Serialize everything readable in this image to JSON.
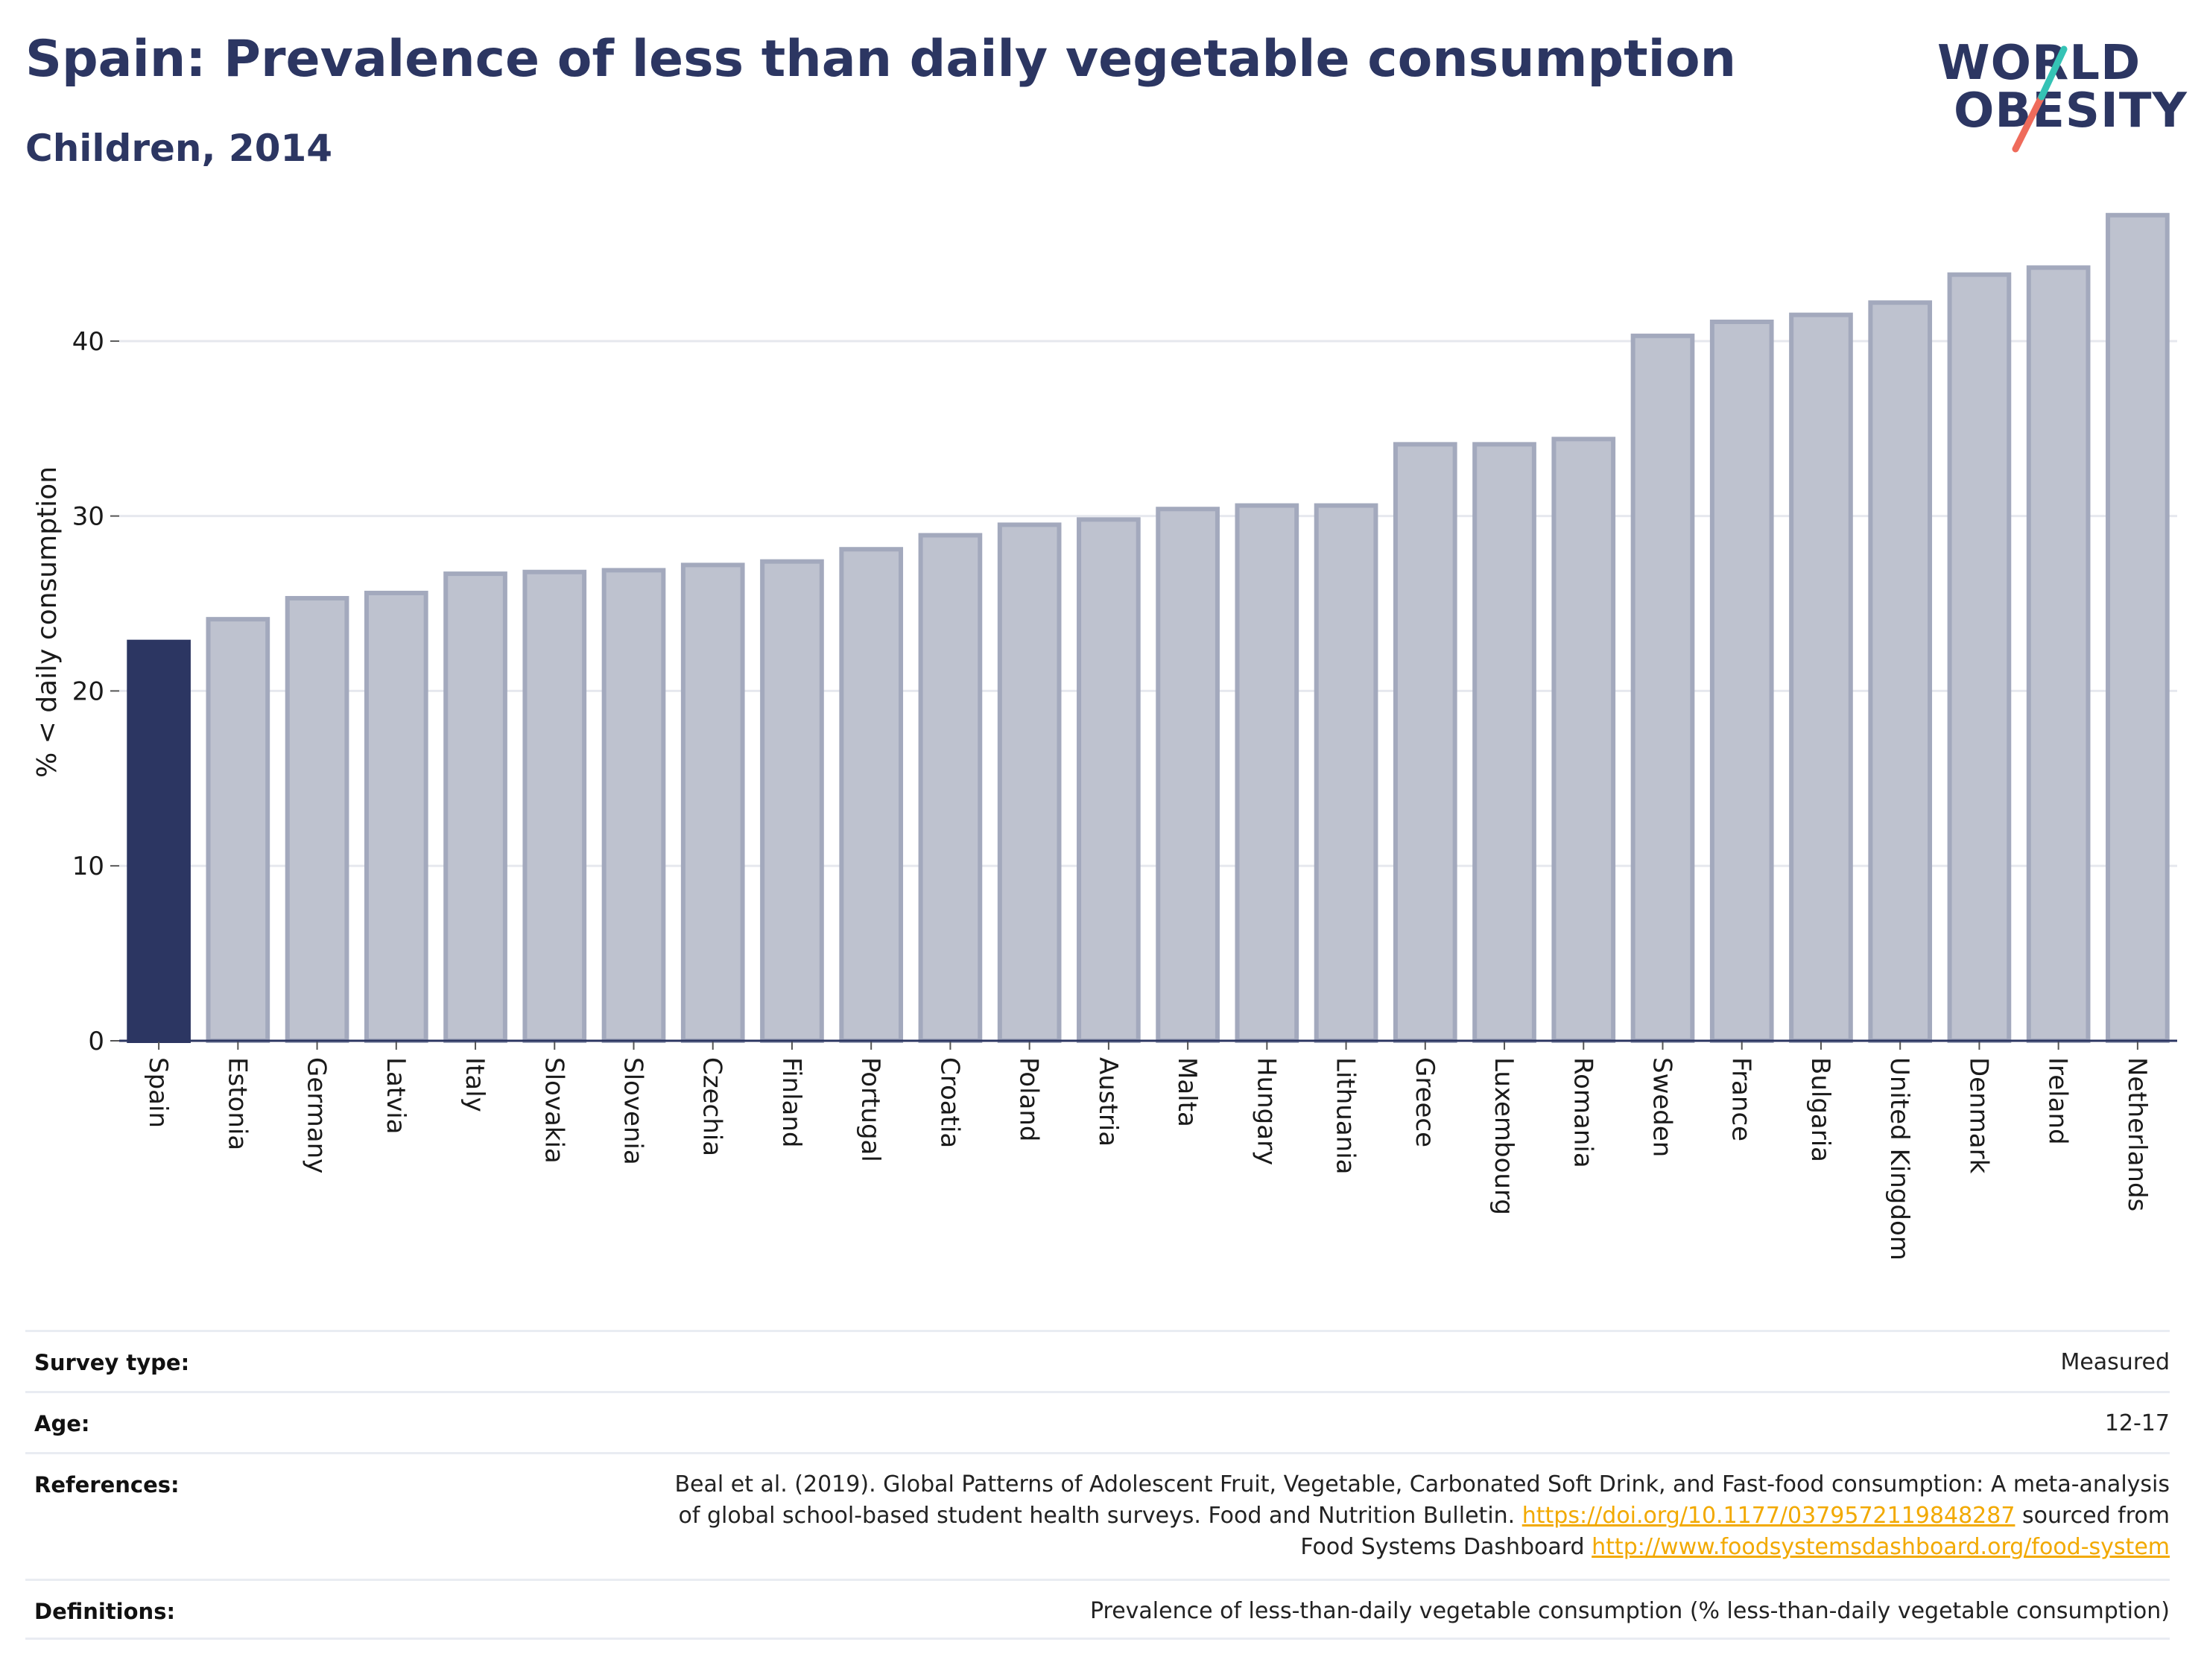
{
  "header": {
    "title": "Spain: Prevalence of less than daily vegetable consumption",
    "subtitle": "Children, 2014"
  },
  "logo": {
    "line1": "WORLD",
    "line2": "OBESITY"
  },
  "colors": {
    "highlight": "#2c3662",
    "bar_fill": "#bec2cf",
    "bar_stroke": "#a3a9bd",
    "grid": "#e6e8ee",
    "logo_teal": "#35c3b5",
    "logo_coral": "#ef6b5b"
  },
  "chart_data": {
    "type": "bar",
    "title": "Spain: Prevalence of less than daily vegetable consumption",
    "subtitle": "Children, 2014",
    "xlabel": "",
    "ylabel": "% < daily consumption",
    "ylim": [
      0,
      48
    ],
    "yticks": [
      0,
      10,
      20,
      30,
      40
    ],
    "grid": true,
    "highlight_category": "Spain",
    "categories": [
      "Spain",
      "Estonia",
      "Germany",
      "Latvia",
      "Italy",
      "Slovakia",
      "Slovenia",
      "Czechia",
      "Finland",
      "Portugal",
      "Croatia",
      "Poland",
      "Austria",
      "Malta",
      "Hungary",
      "Lithuania",
      "Greece",
      "Luxembourg",
      "Romania",
      "Sweden",
      "France",
      "Bulgaria",
      "United Kingdom",
      "Denmark",
      "Ireland",
      "Netherlands"
    ],
    "values": [
      22.8,
      24.1,
      25.3,
      25.6,
      26.7,
      26.8,
      26.9,
      27.2,
      27.4,
      28.1,
      28.9,
      29.5,
      29.8,
      30.4,
      30.6,
      30.6,
      34.1,
      34.1,
      34.4,
      40.3,
      41.1,
      41.5,
      42.2,
      43.8,
      44.2,
      47.2
    ]
  },
  "meta": {
    "survey_label": "Survey type:",
    "survey_value": "Measured",
    "age_label": "Age:",
    "age_value": "12-17",
    "references_label": "References:",
    "ref_line1": "Beal et al. (2019). Global Patterns of Adolescent Fruit, Vegetable, Carbonated Soft Drink, and Fast-food consumption: A meta-analysis",
    "ref_line2_text": "of global school-based student health surveys. Food and Nutrition Bulletin.",
    "ref_link1": "https://doi.org/10.1177/0379572119848287",
    "ref_line2_suffix": "sourced from",
    "ref_line3_text": "Food Systems Dashboard",
    "ref_link2": "http://www.foodsystemsdashboard.org/food-system",
    "definitions_label": "Definitions:",
    "definitions_value": "Prevalence of less-than-daily vegetable consumption (% less-than-daily vegetable consumption)"
  }
}
